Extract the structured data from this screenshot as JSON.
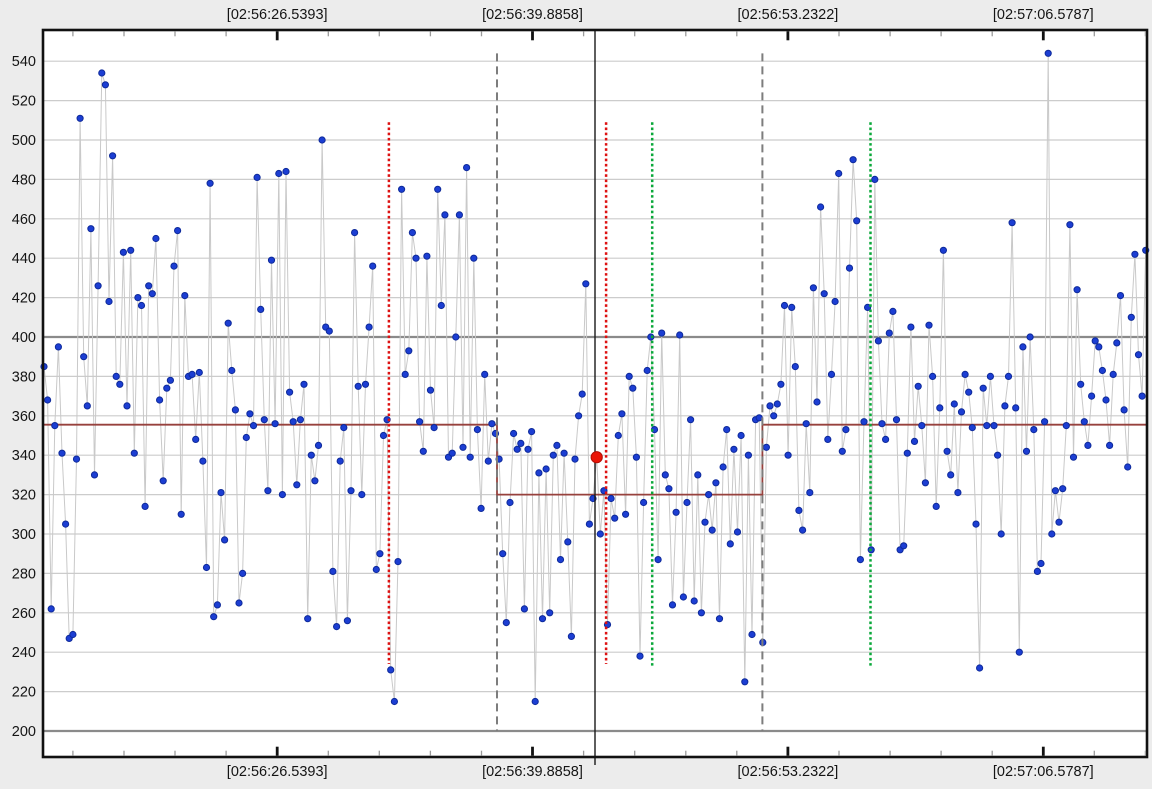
{
  "window": {
    "background": "#ececec",
    "plot_background": "#ffffff"
  },
  "chart_data": {
    "type": "line-scatter",
    "title": "",
    "x_axis": {
      "unit": "time-of-day",
      "range_seconds_after_02_56": [
        14.3,
        72.0
      ],
      "major_ticks": [
        {
          "t": 26.5393,
          "label": "[02:56:26.5393]"
        },
        {
          "t": 39.8858,
          "label": "[02:56:39.8858]"
        },
        {
          "t": 53.2322,
          "label": "[02:56:53.2322]"
        },
        {
          "t": 66.5787,
          "label": "[02:57:06.5787]"
        }
      ],
      "minor_tick_step": 2.6693,
      "minor_k_min": -4,
      "minor_k_max": 17,
      "major_every": 5,
      "labels_shown": "top-and-bottom"
    },
    "y_axis": {
      "min": 200,
      "max": 540,
      "step": 20,
      "tick_labels": [
        "540",
        "520",
        "500",
        "480",
        "460",
        "440",
        "420",
        "400",
        "380",
        "360",
        "340",
        "320",
        "300",
        "280",
        "260",
        "240",
        "220",
        "200"
      ],
      "emphasized_levels": [
        400,
        200
      ],
      "visible_value_range": [
        187,
        556
      ]
    },
    "grid": "horizontal-only",
    "legend": "none",
    "series": {
      "name": "samples",
      "t_start": 14.35,
      "t_step": 0.1888,
      "values": [
        385,
        368,
        262,
        355,
        395,
        341,
        305,
        247,
        249,
        338,
        511,
        390,
        365,
        455,
        330,
        426,
        534,
        528,
        418,
        492,
        380,
        376,
        443,
        365,
        444,
        341,
        420,
        416,
        314,
        426,
        422,
        450,
        368,
        327,
        374,
        378,
        436,
        454,
        310,
        421,
        380,
        381,
        348,
        382,
        337,
        283,
        478,
        258,
        264,
        321,
        297,
        407,
        383,
        363,
        265,
        280,
        349,
        361,
        355,
        481,
        414,
        358,
        322,
        439,
        356,
        483,
        320,
        484,
        372,
        357,
        325,
        358,
        376,
        257,
        340,
        327,
        345,
        500,
        405,
        403,
        281,
        253,
        337,
        354,
        256,
        322,
        453,
        375,
        320,
        376,
        405,
        436,
        282,
        290,
        350,
        358,
        231,
        215,
        286,
        475,
        381,
        393,
        453,
        440,
        357,
        342,
        441,
        373,
        354,
        475,
        416,
        462,
        339,
        341,
        400,
        462,
        344,
        486,
        339,
        440,
        353,
        313,
        381,
        337,
        356,
        351,
        338,
        290,
        255,
        316,
        351,
        343,
        346,
        262,
        343,
        352,
        215,
        331,
        257,
        333,
        260,
        340,
        345,
        287,
        341,
        296,
        248,
        338,
        360,
        371,
        427,
        305,
        318,
        339,
        300,
        322,
        254,
        318,
        308,
        350,
        361,
        310,
        380,
        374,
        339,
        238,
        316,
        383,
        400,
        353,
        287,
        402,
        330,
        323,
        264,
        311,
        401,
        268,
        316,
        358,
        266,
        330,
        260,
        306,
        320,
        302,
        326,
        257,
        334,
        353,
        295,
        343,
        301,
        350,
        225,
        340,
        249,
        358,
        359,
        245,
        344,
        365,
        360,
        366,
        376,
        416,
        340,
        415,
        385,
        312,
        302,
        356,
        321,
        425,
        367,
        466,
        422,
        348,
        381,
        418,
        483,
        342,
        353,
        435,
        490,
        459,
        287,
        357,
        415,
        292,
        480,
        398,
        356,
        348,
        402,
        413,
        358,
        292,
        294,
        341,
        405,
        347,
        375,
        355,
        326,
        406,
        380,
        314,
        364,
        444,
        342,
        330,
        366,
        321,
        362,
        381,
        372,
        354,
        305,
        232,
        374,
        355,
        380,
        355,
        340,
        300,
        365,
        380,
        458,
        364,
        240,
        395,
        342,
        400,
        353,
        281,
        285,
        357,
        544,
        300,
        322,
        306,
        323,
        355,
        457,
        339,
        424,
        376,
        357,
        345,
        370,
        398,
        395,
        383,
        368,
        345,
        381,
        397,
        421,
        363,
        334,
        410,
        442,
        391,
        370,
        444
      ]
    },
    "baseline_step_line": {
      "description": "dark-red stepped reference line",
      "segments": [
        {
          "from_t": 14.3,
          "to_t": 38.03,
          "value": 355.5
        },
        {
          "from_t": 38.03,
          "to_t": 51.9,
          "value": 320.0
        },
        {
          "from_t": 51.9,
          "to_t": 72.0,
          "value": 355.5
        }
      ]
    },
    "vertical_lines": [
      {
        "kind": "event-red",
        "t": 32.38,
        "v_from": 234,
        "v_to": 509
      },
      {
        "kind": "event-red",
        "t": 43.73,
        "v_from": 234,
        "v_to": 509
      },
      {
        "kind": "event-green",
        "t": 46.14,
        "v_from": 232,
        "v_to": 509
      },
      {
        "kind": "event-green",
        "t": 57.55,
        "v_from": 232,
        "v_to": 509
      },
      {
        "kind": "segment-boundary",
        "t": 38.03,
        "v_from": 200,
        "v_to": 544
      },
      {
        "kind": "segment-boundary",
        "t": 51.9,
        "v_from": 200,
        "v_to": 544
      },
      {
        "kind": "cursor",
        "t": 43.15,
        "full_height": true
      }
    ],
    "highlight_point": {
      "t": 43.24,
      "value": 339
    },
    "colors": {
      "point": "#1c3ed3",
      "point_edge": "#0e2a9a",
      "connector": "#c9c9c9",
      "grid_light": "#cccccc",
      "grid_dark": "#8a8a8a",
      "step_line": "#97413d",
      "event_red": "#dd1111",
      "event_green": "#0aa83a",
      "segment_gray": "#7d7d7d",
      "cursor_black": "#1a1a1a",
      "highlight_fill": "#ea1507",
      "highlight_edge": "#b30d04",
      "axis_border": "#111111",
      "tick_minor": "#9a9a9a",
      "label_text": "#141414"
    }
  }
}
